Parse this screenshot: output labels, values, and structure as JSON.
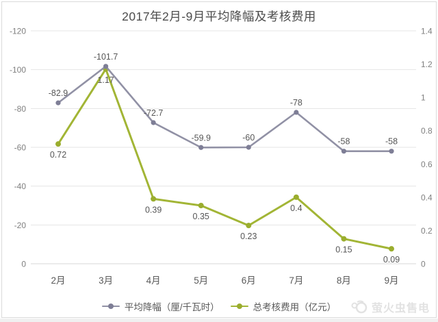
{
  "chart_data": {
    "type": "line",
    "title": "2017年2月-9月平均降幅及考核费用",
    "categories": [
      "2月",
      "3月",
      "4月",
      "5月",
      "6月",
      "7月",
      "8月",
      "9月"
    ],
    "series": [
      {
        "name": "平均降幅（厘/千瓦时）",
        "axis": "left",
        "color": "#9191a5",
        "marker_color": "#7e7e96",
        "values": [
          -82.9,
          -101.7,
          -72.7,
          -59.9,
          -60,
          -78,
          -58,
          -58
        ]
      },
      {
        "name": "总考核费用（亿元）",
        "axis": "right",
        "color": "#a2b535",
        "marker_color": "#9aad2e",
        "values": [
          0.72,
          1.17,
          0.39,
          0.35,
          0.23,
          0.4,
          0.15,
          0.09
        ]
      }
    ],
    "left_axis": {
      "min": -120,
      "max": 0,
      "inverted": true,
      "ticks": [
        "-120",
        "-100",
        "-80",
        "-60",
        "-40",
        "-20",
        "0"
      ]
    },
    "right_axis": {
      "min": 0,
      "max": 1.4,
      "ticks": [
        "1.4",
        "1.2",
        "1",
        "0.8",
        "0.6",
        "0.4",
        "0.2",
        "0"
      ]
    },
    "grid": true,
    "legend_position": "bottom"
  },
  "watermark": {
    "text": "萤火虫售电"
  },
  "colors": {
    "gridline": "#e4e4e4",
    "axis_line": "#d7d7d7",
    "title": "#4c4c4c"
  }
}
